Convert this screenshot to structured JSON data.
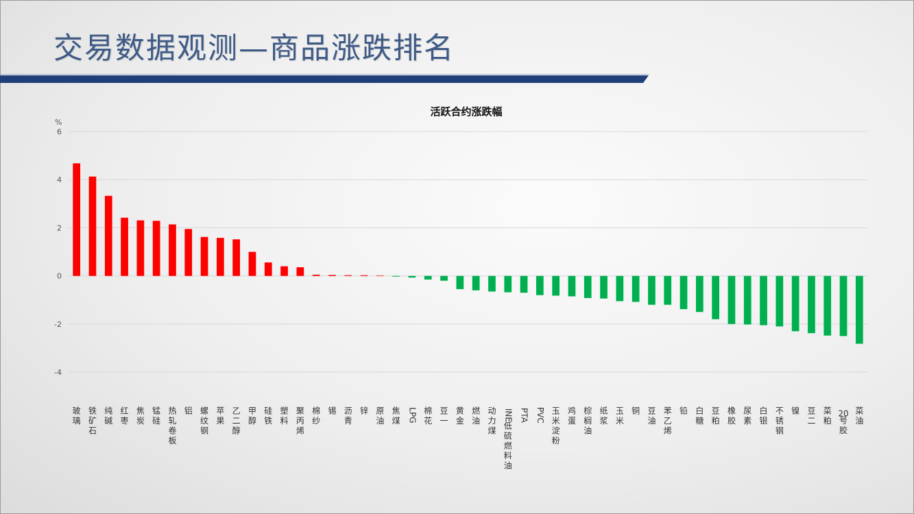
{
  "slide": {
    "title": "交易数据观测—商品涨跌排名"
  },
  "colors": {
    "title": "#3e5a86",
    "band": "#203f78",
    "positive": "#ff0000",
    "negative": "#00b050"
  },
  "chart_data": {
    "type": "bar",
    "title": "活跃合约涨跌幅",
    "ylabel": "%",
    "xlabel": "",
    "ylim": [
      -4,
      6
    ],
    "yticks": [
      -4,
      -2,
      0,
      2,
      4,
      6
    ],
    "grid": true,
    "legend": "none",
    "categories": [
      "玻璃",
      "铁矿石",
      "纯碱",
      "红枣",
      "焦炭",
      "锰硅",
      "热轧卷板",
      "铝",
      "螺纹钢",
      "苹果",
      "乙二醇",
      "甲醇",
      "硅铁",
      "塑料",
      "聚丙烯",
      "棉纱",
      "锡",
      "沥青",
      "锌",
      "原油",
      "焦煤",
      "LPG",
      "棉花",
      "豆一",
      "黄金",
      "燃油",
      "动力煤",
      "INE低硫燃料油",
      "PTA",
      "PVC",
      "玉米淀粉",
      "鸡蛋",
      "棕榈油",
      "纸浆",
      "玉米",
      "铜",
      "豆油",
      "苯乙烯",
      "铅",
      "白糖",
      "豆粕",
      "橡胶",
      "尿素",
      "白银",
      "不锈钢",
      "镍",
      "豆二",
      "菜粕",
      "20号胶",
      "菜油"
    ],
    "values": [
      4.68,
      4.13,
      3.33,
      2.42,
      2.31,
      2.29,
      2.14,
      1.95,
      1.62,
      1.58,
      1.52,
      1.0,
      0.56,
      0.4,
      0.36,
      0.05,
      0.04,
      0.03,
      0.03,
      0.02,
      -0.03,
      -0.07,
      -0.15,
      -0.2,
      -0.55,
      -0.6,
      -0.65,
      -0.68,
      -0.7,
      -0.8,
      -0.82,
      -0.85,
      -0.92,
      -0.94,
      -1.05,
      -1.08,
      -1.2,
      -1.2,
      -1.38,
      -1.5,
      -1.8,
      -2.0,
      -2.02,
      -2.05,
      -2.1,
      -2.3,
      -2.38,
      -2.48,
      -2.5,
      -2.82
    ]
  }
}
